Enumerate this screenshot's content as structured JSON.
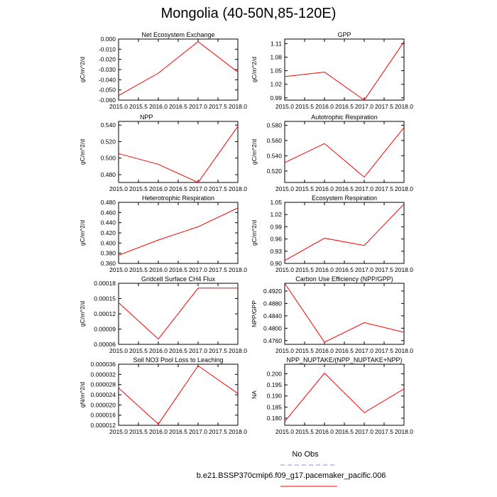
{
  "figure": {
    "title": "Mongolia (40-50N,85-120E)"
  },
  "legend": [
    {
      "label": "No Obs",
      "color": "#8a8aff",
      "dash": true
    },
    {
      "label": "b.e21.BSSP370cmip6.f09_g17.pacemaker_pacific.006",
      "color": "#ff0000",
      "dash": false
    }
  ],
  "chart_data": [
    {
      "type": "line",
      "title": "Net Ecosystem Exchange",
      "ylabel": "gC/m^2/d",
      "x": [
        2015.0,
        2016.0,
        2017.0,
        2018.0
      ],
      "series": [
        {
          "values": [
            -0.0555,
            -0.0335,
            -0.0025,
            -0.0325
          ]
        }
      ],
      "xlim": [
        2015.0,
        2018.0
      ],
      "ylim": [
        -0.06,
        0.0
      ],
      "xticks": [
        2015.0,
        2015.5,
        2016.0,
        2016.5,
        2017.0,
        2017.5,
        2018.0
      ],
      "xtick_labels": [
        "2015.0",
        "2015.5",
        "2016.0",
        "2016.5",
        "2017.0",
        "2017.5",
        "2018.0"
      ],
      "yticks": [
        -0.06,
        -0.05,
        -0.04,
        -0.03,
        -0.02,
        -0.01,
        0.0
      ],
      "ytick_labels": [
        "-0.060",
        "-0.050",
        "-0.040",
        "-0.030",
        "-0.020",
        "-0.010",
        "0.000"
      ],
      "title_align": "center"
    },
    {
      "type": "line",
      "title": "GPP",
      "ylabel": "gC/m^2/d",
      "x": [
        2015.0,
        2016.0,
        2017.0,
        2018.0
      ],
      "series": [
        {
          "values": [
            1.037,
            1.047,
            0.985,
            1.114
          ]
        }
      ],
      "xlim": [
        2015.0,
        2018.0
      ],
      "ylim": [
        0.985,
        1.12
      ],
      "xticks": [
        2015.0,
        2015.5,
        2016.0,
        2016.5,
        2017.0,
        2017.5,
        2018.0
      ],
      "xtick_labels": [
        "2015.0",
        "2015.5",
        "2016.0",
        "2016.5",
        "2017.0",
        "2017.5",
        "2018.0"
      ],
      "yticks": [
        0.99,
        1.02,
        1.05,
        1.08,
        1.11
      ],
      "ytick_labels": [
        "0.99",
        "1.02",
        "1.05",
        "1.08",
        "1.11"
      ],
      "title_align": "center"
    },
    {
      "type": "line",
      "title": "NPP",
      "ylabel": "gC/m^2/d",
      "x": [
        2015.0,
        2016.0,
        2017.0,
        2018.0
      ],
      "series": [
        {
          "values": [
            0.5055,
            0.4925,
            0.4705,
            0.5385
          ]
        }
      ],
      "xlim": [
        2015.0,
        2018.0
      ],
      "ylim": [
        0.4705,
        0.5445
      ],
      "xticks": [
        2015.0,
        2015.5,
        2016.0,
        2016.5,
        2017.0,
        2017.5,
        2018.0
      ],
      "xtick_labels": [
        "2015.0",
        "2015.5",
        "2016.0",
        "2016.5",
        "2017.0",
        "2017.5",
        "2018.0"
      ],
      "yticks": [
        0.48,
        0.5,
        0.52,
        0.54
      ],
      "ytick_labels": [
        "0.480",
        "0.500",
        "0.520",
        "0.540"
      ],
      "title_align": "left"
    },
    {
      "type": "line",
      "title": "Autotrophic Respiration",
      "ylabel": "gC/m^2/d",
      "x": [
        2015.0,
        2016.0,
        2017.0,
        2018.0
      ],
      "series": [
        {
          "values": [
            0.531,
            0.556,
            0.512,
            0.577
          ]
        }
      ],
      "xlim": [
        2015.0,
        2018.0
      ],
      "ylim": [
        0.505,
        0.585
      ],
      "xticks": [
        2015.0,
        2015.5,
        2016.0,
        2016.5,
        2017.0,
        2017.5,
        2018.0
      ],
      "xtick_labels": [
        "2015.0",
        "2015.5",
        "2016.0",
        "2016.5",
        "2017.0",
        "2017.5",
        "2018.0"
      ],
      "yticks": [
        0.52,
        0.54,
        0.56,
        0.58
      ],
      "ytick_labels": [
        "0.520",
        "0.540",
        "0.560",
        "0.580"
      ],
      "title_align": "center"
    },
    {
      "type": "line",
      "title": "Heterotrophic Respiration",
      "ylabel": "gC/m^2/d",
      "x": [
        2015.0,
        2016.0,
        2017.0,
        2018.0
      ],
      "series": [
        {
          "values": [
            0.376,
            0.406,
            0.432,
            0.469
          ]
        }
      ],
      "xlim": [
        2015.0,
        2018.0
      ],
      "ylim": [
        0.36,
        0.48
      ],
      "xticks": [
        2015.0,
        2015.5,
        2016.0,
        2016.5,
        2017.0,
        2017.5,
        2018.0
      ],
      "xtick_labels": [
        "2015.0",
        "2015.5",
        "2016.0",
        "2016.5",
        "2017.0",
        "2017.5",
        "2018.0"
      ],
      "yticks": [
        0.36,
        0.38,
        0.4,
        0.42,
        0.44,
        0.46,
        0.48
      ],
      "ytick_labels": [
        "0.360",
        "0.380",
        "0.400",
        "0.420",
        "0.440",
        "0.460",
        "0.480"
      ],
      "title_align": "center"
    },
    {
      "type": "line",
      "title": "Ecosystem Respiration",
      "ylabel": "gC/m^2/d",
      "x": [
        2015.0,
        2016.0,
        2017.0,
        2018.0
      ],
      "series": [
        {
          "values": [
            0.907,
            0.962,
            0.944,
            1.046
          ]
        }
      ],
      "xlim": [
        2015.0,
        2018.0
      ],
      "ylim": [
        0.9,
        1.05
      ],
      "xticks": [
        2015.0,
        2015.5,
        2016.0,
        2016.5,
        2017.0,
        2017.5,
        2018.0
      ],
      "xtick_labels": [
        "2015.0",
        "2015.5",
        "2016.0",
        "2016.5",
        "2017.0",
        "2017.5",
        "2018.0"
      ],
      "yticks": [
        0.9,
        0.93,
        0.96,
        0.99,
        1.02,
        1.05
      ],
      "ytick_labels": [
        "0.90",
        "0.93",
        "0.96",
        "0.99",
        "1.02",
        "1.05"
      ],
      "title_align": "center"
    },
    {
      "type": "line",
      "title": "Gridcell Surface CH4 Flux",
      "ylabel": "gC/m^2/d",
      "x": [
        2015.0,
        2016.0,
        2017.0,
        2018.0
      ],
      "series": [
        {
          "values": [
            0.000142,
            7.05e-05,
            0.0001705,
            0.0001705
          ]
        }
      ],
      "xlim": [
        2015.0,
        2018.0
      ],
      "ylim": [
        6e-05,
        0.00018
      ],
      "xticks": [
        2015.0,
        2015.5,
        2016.0,
        2016.5,
        2017.0,
        2017.5,
        2018.0
      ],
      "xtick_labels": [
        "2015.0",
        "2015.5",
        "2016.0",
        "2016.5",
        "2017.0",
        "2017.5",
        "2018.0"
      ],
      "yticks": [
        6e-05,
        9e-05,
        0.00012,
        0.00015,
        0.00018
      ],
      "ytick_labels": [
        "0.00006",
        "0.00009",
        "0.00012",
        "0.00015",
        "0.00018"
      ],
      "title_align": "center"
    },
    {
      "type": "line",
      "title": "Carbon Use Efficiency (NPP/GPP)",
      "ylabel": "NPP/GPP",
      "x": [
        2015.0,
        2016.0,
        2017.0,
        2018.0
      ],
      "series": [
        {
          "values": [
            0.4945,
            0.4755,
            0.4818,
            0.4787
          ]
        }
      ],
      "xlim": [
        2015.0,
        2018.0
      ],
      "ylim": [
        0.4748,
        0.4945
      ],
      "xticks": [
        2015.0,
        2015.5,
        2016.0,
        2016.5,
        2017.0,
        2017.5,
        2018.0
      ],
      "xtick_labels": [
        "2015.0",
        "2015.5",
        "2016.0",
        "2016.5",
        "2017.0",
        "2017.5",
        "2018.0"
      ],
      "yticks": [
        0.476,
        0.48,
        0.484,
        0.488,
        0.492
      ],
      "ytick_labels": [
        "0.4760",
        "0.4800",
        "0.4840",
        "0.4880",
        "0.4920"
      ],
      "title_align": "center"
    },
    {
      "type": "line",
      "title": "Soil NO3 Pool Loss to Leaching",
      "ylabel": "gN/m^2/d",
      "x": [
        2015.0,
        2016.0,
        2017.0,
        2018.0
      ],
      "series": [
        {
          "values": [
            2.67e-05,
            1.25e-05,
            3.54e-05,
            2.45e-05
          ]
        }
      ],
      "xlim": [
        2015.0,
        2018.0
      ],
      "ylim": [
        1.2e-05,
        3.6e-05
      ],
      "xticks": [
        2015.0,
        2015.5,
        2016.0,
        2016.5,
        2017.0,
        2017.5,
        2018.0
      ],
      "xtick_labels": [
        "2015.0",
        "2015.5",
        "2016.0",
        "2016.5",
        "2017.0",
        "2017.5",
        "2018.0"
      ],
      "yticks": [
        1.2e-05,
        1.6e-05,
        2e-05,
        2.4e-05,
        2.8e-05,
        3.2e-05,
        3.6e-05
      ],
      "ytick_labels": [
        "0.000012",
        "0.000016",
        "0.000020",
        "0.000024",
        "0.000028",
        "0.000032",
        "0.000036"
      ],
      "title_align": "center"
    },
    {
      "type": "line",
      "title": "NPP_NUPTAKE/(NPP_NUPTAKE+NPP)",
      "ylabel": "NA",
      "x": [
        2015.0,
        2016.0,
        2017.0,
        2018.0
      ],
      "series": [
        {
          "values": [
            0.1785,
            0.2003,
            0.1825,
            0.1932
          ]
        }
      ],
      "xlim": [
        2015.0,
        2018.0
      ],
      "ylim": [
        0.1768,
        0.2043
      ],
      "xticks": [
        2015.0,
        2015.5,
        2016.0,
        2016.5,
        2017.0,
        2017.5,
        2018.0
      ],
      "xtick_labels": [
        "2015.0",
        "2015.5",
        "2016.0",
        "2016.5",
        "2017.0",
        "2017.5",
        "2018.0"
      ],
      "yticks": [
        0.18,
        0.185,
        0.19,
        0.195,
        0.2
      ],
      "ytick_labels": [
        "0.180",
        "0.185",
        "0.190",
        "0.195",
        "0.200"
      ],
      "title_align": "center"
    }
  ]
}
